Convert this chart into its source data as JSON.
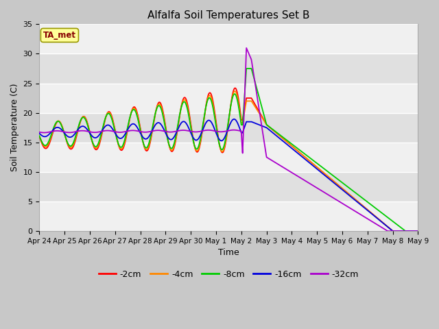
{
  "title": "Alfalfa Soil Temperatures Set B",
  "xlabel": "Time",
  "ylabel": "Soil Temperature (C)",
  "ylim": [
    0,
    35
  ],
  "xlim": [
    0,
    15
  ],
  "fig_bg_color": "#c8c8c8",
  "plot_bg_color": "#e8e8e8",
  "ta_met_label": "TA_met",
  "ta_met_bg": "#ffff99",
  "ta_met_border": "#999900",
  "ta_met_text_color": "#880000",
  "series_colors": {
    "-2cm": "#ff0000",
    "-4cm": "#ff8800",
    "-8cm": "#00cc00",
    "-16cm": "#0000dd",
    "-32cm": "#aa00cc"
  },
  "x_tick_labels": [
    "Apr 24",
    "Apr 25",
    "Apr 26",
    "Apr 27",
    "Apr 28",
    "Apr 29",
    "Apr 30",
    "May 1",
    "May 2",
    "May 3",
    "May 4",
    "May 5",
    "May 6",
    "May 7",
    "May 8",
    "May 9"
  ],
  "x_tick_positions": [
    0,
    1,
    2,
    3,
    4,
    5,
    6,
    7,
    8,
    9,
    10,
    11,
    12,
    13,
    14,
    15
  ]
}
